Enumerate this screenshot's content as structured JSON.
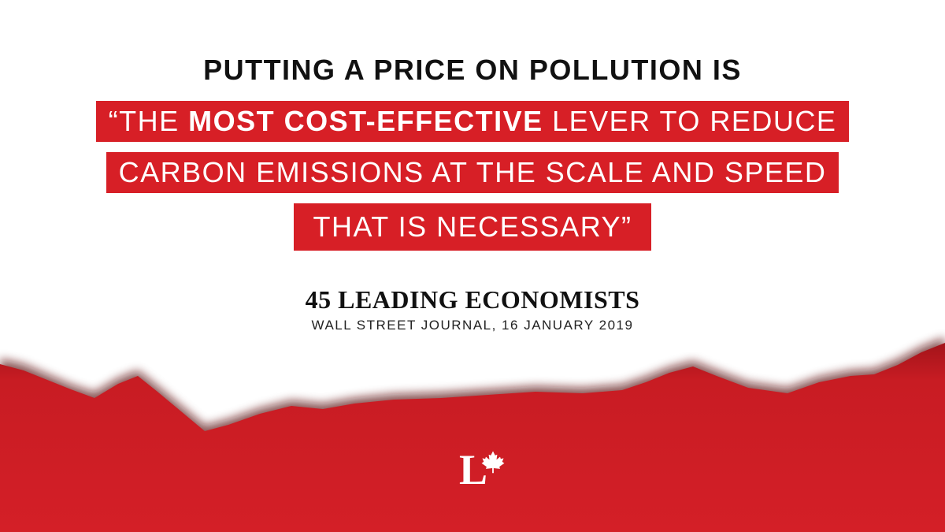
{
  "headline": "PUTTING A PRICE ON POLLUTION IS",
  "quote": {
    "lines": [
      [
        "“THE ",
        "MOST COST-EFFECTIVE",
        " LEVER TO REDUCE"
      ],
      [
        "CARBON EMISSIONS AT THE SCALE AND SPEED"
      ],
      [
        "THAT IS NECESSARY”"
      ]
    ]
  },
  "attribution": {
    "name": "45 LEADING ECONOMISTS",
    "source": "WALL STREET JOURNAL, 16 JANUARY 2019"
  },
  "logo": {
    "letter": "L"
  }
}
